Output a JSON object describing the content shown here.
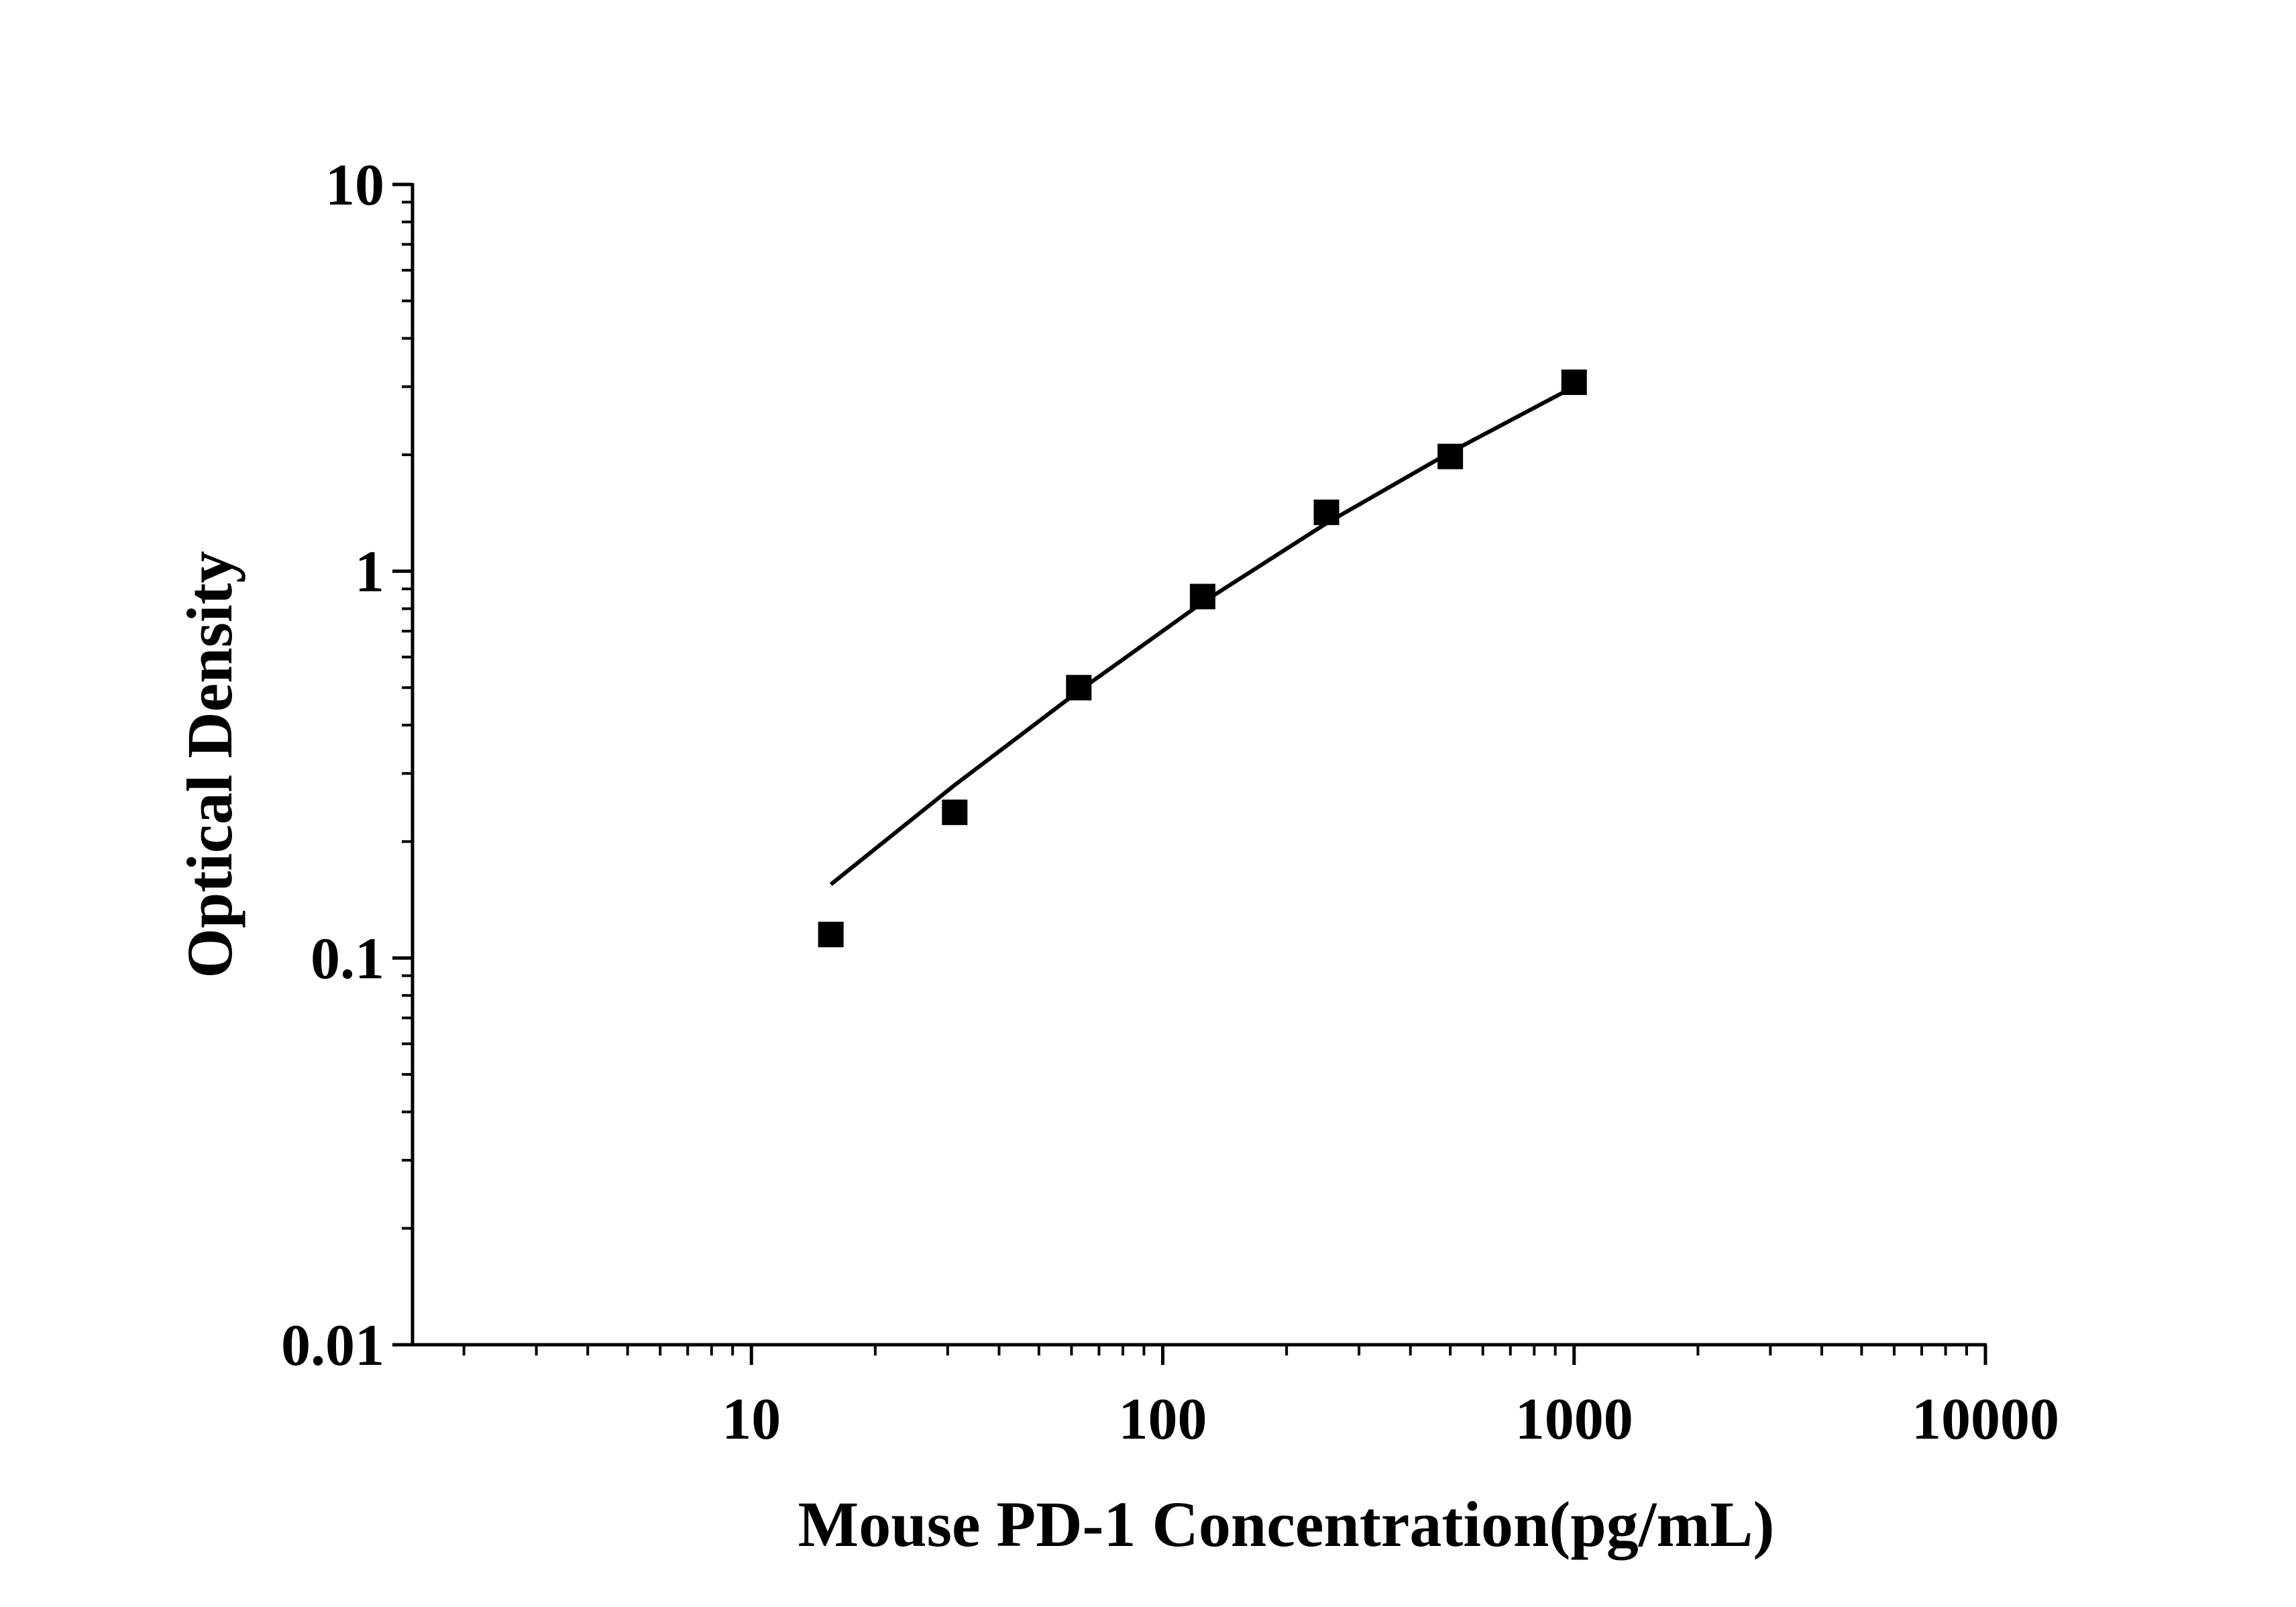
{
  "chart_data": {
    "type": "scatter",
    "title": "",
    "xlabel": "Mouse PD-1 Concentration(pg/mL)",
    "ylabel": "Optical Density",
    "x_scale": "log",
    "y_scale": "log",
    "xlim": [
      1.5,
      10000
    ],
    "ylim": [
      0.01,
      10
    ],
    "x_ticks": [
      {
        "value": 10,
        "label": "10"
      },
      {
        "value": 100,
        "label": "100"
      },
      {
        "value": 1000,
        "label": "1000"
      },
      {
        "value": 10000,
        "label": "10000"
      }
    ],
    "y_ticks": [
      {
        "value": 0.01,
        "label": "0.01"
      },
      {
        "value": 0.1,
        "label": "0.1"
      },
      {
        "value": 1,
        "label": "1"
      },
      {
        "value": 10,
        "label": "10"
      }
    ],
    "grid": false,
    "legend": "none",
    "series": [
      {
        "kind": "points",
        "marker": "square",
        "color": "#000000",
        "x": [
          15.6,
          31.2,
          62.5,
          125,
          250,
          500,
          1000
        ],
        "y": [
          0.115,
          0.238,
          0.5,
          0.86,
          1.42,
          1.98,
          3.08
        ]
      },
      {
        "kind": "fit-line",
        "color": "#000000",
        "x": [
          15.6,
          31.2,
          62.5,
          125,
          250,
          500,
          1000
        ],
        "y": [
          0.155,
          0.28,
          0.49,
          0.83,
          1.33,
          2.03,
          3.0
        ]
      }
    ]
  }
}
